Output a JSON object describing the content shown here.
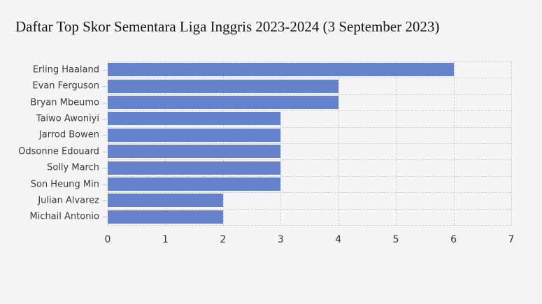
{
  "chart_data": {
    "type": "bar",
    "orientation": "horizontal",
    "title": "Daftar Top Skor Sementara Liga Inggris 2023-2024 (3 September 2023)",
    "categories": [
      "Erling Haaland",
      "Evan Ferguson",
      "Bryan Mbeumo",
      "Taiwo Awoniyi",
      "Jarrod Bowen",
      "Odsonne Edouard",
      "Solly March",
      "Son Heung Min",
      "Julian Alvarez",
      "Michail Antonio"
    ],
    "values": [
      6,
      4,
      4,
      3,
      3,
      3,
      3,
      3,
      2,
      2
    ],
    "xlabel": "",
    "ylabel": "",
    "xlim": [
      0,
      7
    ],
    "x_ticks": [
      0,
      1,
      2,
      3,
      4,
      5,
      6,
      7
    ],
    "grid": "dashed-both-axes",
    "legend": "none",
    "colors": {
      "bar": "#5b79c8",
      "background": "#f5f5f6",
      "grid": "#cfcfcf",
      "title_text": "#141414",
      "axis_text": "#3a3a3a"
    }
  }
}
